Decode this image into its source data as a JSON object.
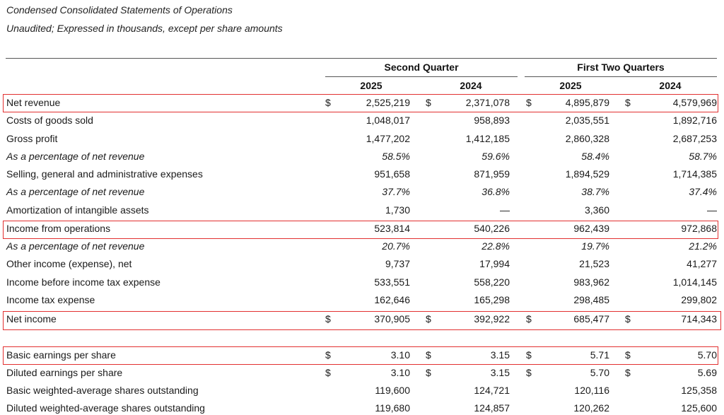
{
  "document": {
    "title": "Condensed Consolidated Statements of Operations",
    "subtitle": "Unaudited; Expressed in thousands, except per share amounts"
  },
  "headers": {
    "group1": "Second Quarter",
    "group2": "First Two Quarters",
    "years": [
      "2025",
      "2024",
      "2025",
      "2024"
    ]
  },
  "rows": [
    {
      "label": "Net revenue",
      "currency": true,
      "values": [
        "2,525,219",
        "2,371,078",
        "4,895,879",
        "4,579,969"
      ]
    },
    {
      "label": "Costs of goods sold",
      "values": [
        "1,048,017",
        "958,893",
        "2,035,551",
        "1,892,716"
      ]
    },
    {
      "label": "Gross profit",
      "values": [
        "1,477,202",
        "1,412,185",
        "2,860,328",
        "2,687,253"
      ]
    },
    {
      "label": "As a percentage of net revenue",
      "italic": true,
      "values": [
        "58.5%",
        "59.6%",
        "58.4%",
        "58.7%"
      ]
    },
    {
      "label": "Selling, general and administrative expenses",
      "values": [
        "951,658",
        "871,959",
        "1,894,529",
        "1,714,385"
      ]
    },
    {
      "label": "As a percentage of net revenue",
      "italic": true,
      "values": [
        "37.7%",
        "36.8%",
        "38.7%",
        "37.4%"
      ]
    },
    {
      "label": "Amortization of intangible assets",
      "values": [
        "1,730",
        "—",
        "3,360",
        "—"
      ]
    },
    {
      "label": "Income from operations",
      "values": [
        "523,814",
        "540,226",
        "962,439",
        "972,868"
      ]
    },
    {
      "label": "As a percentage of net revenue",
      "italic": true,
      "values": [
        "20.7%",
        "22.8%",
        "19.7%",
        "21.2%"
      ]
    },
    {
      "label": "Other income (expense), net",
      "values": [
        "9,737",
        "17,994",
        "21,523",
        "41,277"
      ]
    },
    {
      "label": "Income before income tax expense",
      "values": [
        "533,551",
        "558,220",
        "983,962",
        "1,014,145"
      ]
    },
    {
      "label": "Income tax expense",
      "values": [
        "162,646",
        "165,298",
        "298,485",
        "299,802"
      ]
    },
    {
      "label": "Net income",
      "currency": true,
      "values": [
        "370,905",
        "392,922",
        "685,477",
        "714,343"
      ]
    },
    {
      "label": "Basic earnings per share",
      "currency": true,
      "values": [
        "3.10",
        "3.15",
        "5.71",
        "5.70"
      ]
    },
    {
      "label": "Diluted earnings per share",
      "currency": true,
      "values": [
        "3.10",
        "3.15",
        "5.70",
        "5.69"
      ]
    },
    {
      "label": "Basic weighted-average shares outstanding",
      "values": [
        "119,600",
        "124,721",
        "120,116",
        "125,358"
      ]
    },
    {
      "label": "Diluted weighted-average shares outstanding",
      "values": [
        "119,680",
        "124,857",
        "120,262",
        "125,600"
      ]
    }
  ],
  "currency_symbol": "$",
  "highlight_color": "#e23030"
}
